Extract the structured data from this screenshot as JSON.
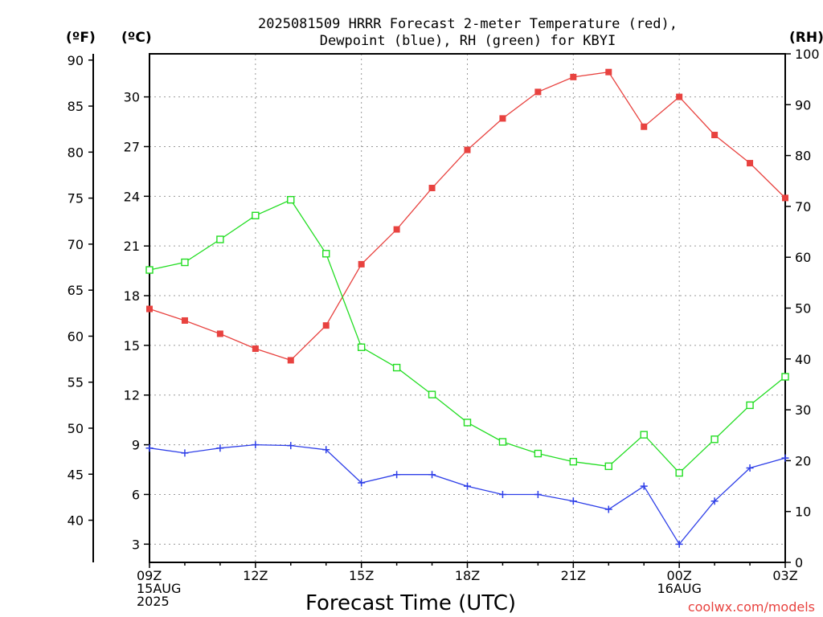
{
  "chart_data": {
    "type": "line",
    "title_lines": [
      "2025081509 HRRR Forecast 2-meter Temperature (red),",
      "Dewpoint (blue), RH (green) for KBYI"
    ],
    "units": {
      "fahrenheit": "(ºF)",
      "celsius": "(ºC)",
      "rh": "(RH)"
    },
    "xlabel": "Forecast Time (UTC)",
    "x_hours": [
      9,
      10,
      11,
      12,
      13,
      14,
      15,
      16,
      17,
      18,
      19,
      20,
      21,
      22,
      23,
      24,
      25,
      26,
      27
    ],
    "x_tick_labels": [
      {
        "hour": 9,
        "lines": [
          "09Z",
          "15AUG",
          "2025"
        ]
      },
      {
        "hour": 12,
        "lines": [
          "12Z"
        ]
      },
      {
        "hour": 15,
        "lines": [
          "15Z"
        ]
      },
      {
        "hour": 18,
        "lines": [
          "18Z"
        ]
      },
      {
        "hour": 21,
        "lines": [
          "21Z"
        ]
      },
      {
        "hour": 24,
        "lines": [
          "00Z",
          "16AUG"
        ]
      },
      {
        "hour": 27,
        "lines": [
          "03Z"
        ]
      }
    ],
    "y_celsius_ticks": [
      3,
      6,
      9,
      12,
      15,
      18,
      21,
      24,
      27,
      30
    ],
    "y_fahrenheit_ticks": [
      40,
      45,
      50,
      55,
      60,
      65,
      70,
      75,
      80,
      85,
      90
    ],
    "y_rh_ticks": [
      0,
      10,
      20,
      30,
      40,
      50,
      60,
      70,
      80,
      90,
      100
    ],
    "rh_range": [
      0,
      100
    ],
    "celsius_range": [
      1.9,
      32.6
    ],
    "grid": true,
    "series": [
      {
        "name": "Temperature",
        "color": "#e8423f",
        "marker": "filled-square",
        "axis": "celsius",
        "values": [
          17.2,
          16.5,
          15.7,
          14.8,
          14.1,
          16.2,
          19.9,
          22.0,
          24.5,
          26.8,
          28.7,
          30.3,
          31.2,
          31.5,
          28.2,
          30.0,
          27.7,
          26.0,
          23.9
        ]
      },
      {
        "name": "Dewpoint",
        "color": "#2e3fe8",
        "marker": "plus",
        "axis": "celsius",
        "values": [
          8.8,
          8.5,
          8.8,
          9.0,
          8.95,
          8.7,
          6.7,
          7.2,
          7.2,
          6.5,
          6.0,
          6.0,
          5.6,
          5.1,
          6.5,
          3.0,
          5.6,
          7.6,
          8.2
        ]
      },
      {
        "name": "RH",
        "color": "#22dd22",
        "marker": "open-square",
        "axis": "rh",
        "values": [
          57.5,
          59,
          63.5,
          68.2,
          71.3,
          60.7,
          42.3,
          38.3,
          33.0,
          27.5,
          23.7,
          21.4,
          19.8,
          18.9,
          25.1,
          17.6,
          24.2,
          30.9,
          36.5
        ]
      }
    ]
  },
  "credit": "coolwx.com/models"
}
